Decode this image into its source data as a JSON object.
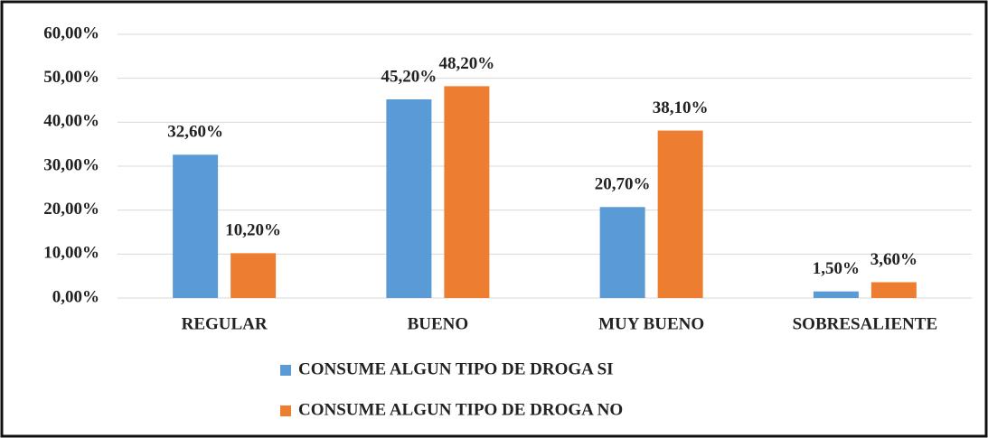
{
  "chart_data": {
    "type": "bar",
    "categories": [
      "REGULAR",
      "BUENO",
      "MUY BUENO",
      "SOBRESALIENTE"
    ],
    "series": [
      {
        "name": "CONSUME ALGUN TIPO DE DROGA SI",
        "color": "#5b9bd5",
        "values": [
          32.6,
          45.2,
          20.7,
          1.5
        ],
        "value_labels": [
          "32,60%",
          "45,20%",
          "20,70%",
          "1,50%"
        ]
      },
      {
        "name": "CONSUME ALGUN TIPO DE DROGA NO",
        "color": "#ed7d31",
        "values": [
          10.2,
          48.2,
          38.1,
          3.6
        ],
        "value_labels": [
          "10,20%",
          "48,20%",
          "38,10%",
          "3,60%"
        ]
      }
    ],
    "ylim": [
      0,
      60
    ],
    "yticks": [
      {
        "value": 0,
        "label": "0,00%"
      },
      {
        "value": 10,
        "label": "10,00%"
      },
      {
        "value": 20,
        "label": "20,00%"
      },
      {
        "value": 30,
        "label": "30,00%"
      },
      {
        "value": 40,
        "label": "40,00%"
      },
      {
        "value": 50,
        "label": "50,00%"
      },
      {
        "value": 60,
        "label": "60,00%"
      }
    ],
    "grid": true,
    "legend": "bottom"
  }
}
